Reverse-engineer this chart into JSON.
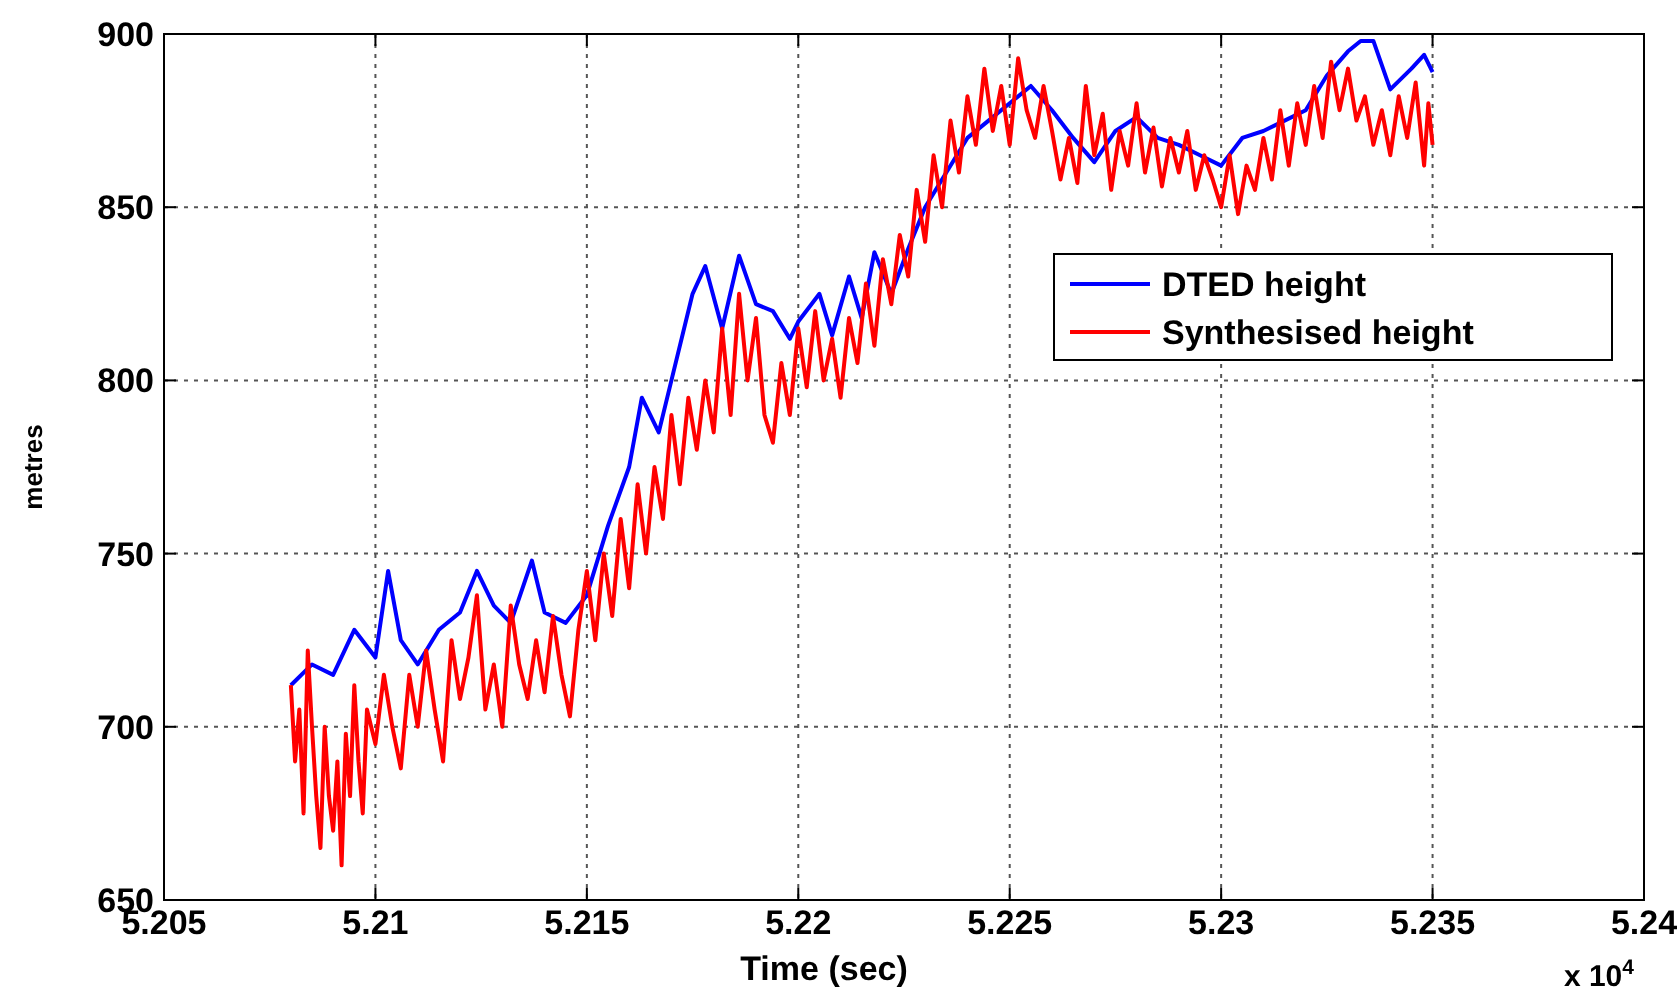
{
  "chart_data": {
    "type": "line",
    "xlabel": "Time (sec)",
    "ylabel": "metres",
    "annotations": [
      "x 10$^{4}$"
    ],
    "xlim": [
      5.205,
      5.24
    ],
    "xticks": [
      5.205,
      5.21,
      5.215,
      5.22,
      5.225,
      5.23,
      5.235,
      5.24
    ],
    "ylim": [
      650,
      900
    ],
    "yticks": [
      650,
      700,
      750,
      800,
      850,
      900
    ],
    "grid": true,
    "legend": "right",
    "line_style": "solid",
    "series": [
      {
        "name": "DTED height",
        "color": "#0000ff",
        "x": [
          5.208,
          5.2085,
          5.209,
          5.2095,
          5.21,
          5.2103,
          5.2106,
          5.211,
          5.2115,
          5.212,
          5.2124,
          5.2128,
          5.2132,
          5.2137,
          5.214,
          5.2145,
          5.215,
          5.2155,
          5.216,
          5.2163,
          5.2167,
          5.217,
          5.2175,
          5.2178,
          5.2182,
          5.2186,
          5.219,
          5.2194,
          5.2198,
          5.22,
          5.2205,
          5.2208,
          5.2212,
          5.2215,
          5.2218,
          5.2222,
          5.2226,
          5.223,
          5.2235,
          5.224,
          5.2245,
          5.225,
          5.2255,
          5.226,
          5.2265,
          5.227,
          5.2275,
          5.228,
          5.2285,
          5.229,
          5.2295,
          5.23,
          5.2305,
          5.231,
          5.2315,
          5.232,
          5.2325,
          5.233,
          5.2333,
          5.2336,
          5.234,
          5.2345,
          5.2348,
          5.235
        ],
        "values": [
          712,
          718,
          715,
          728,
          720,
          745,
          725,
          718,
          728,
          733,
          745,
          735,
          730,
          748,
          733,
          730,
          738,
          758,
          775,
          795,
          785,
          800,
          825,
          833,
          815,
          836,
          822,
          820,
          812,
          817,
          825,
          813,
          830,
          818,
          837,
          825,
          838,
          850,
          860,
          870,
          875,
          880,
          885,
          878,
          870,
          863,
          872,
          876,
          870,
          868,
          865,
          862,
          870,
          872,
          875,
          878,
          888,
          895,
          898,
          898,
          884,
          890,
          894,
          889
        ]
      },
      {
        "name": "Synthesised height",
        "color": "#ff0000",
        "x": [
          5.208,
          5.2081,
          5.2082,
          5.2083,
          5.2084,
          5.2085,
          5.2086,
          5.2087,
          5.2088,
          5.2089,
          5.209,
          5.2091,
          5.2092,
          5.2093,
          5.2094,
          5.2095,
          5.2096,
          5.2097,
          5.2098,
          5.21,
          5.2102,
          5.2104,
          5.2106,
          5.2108,
          5.211,
          5.2112,
          5.2114,
          5.2116,
          5.2118,
          5.212,
          5.2122,
          5.2124,
          5.2126,
          5.2128,
          5.213,
          5.2132,
          5.2134,
          5.2136,
          5.2138,
          5.214,
          5.2142,
          5.2144,
          5.2146,
          5.2148,
          5.215,
          5.2152,
          5.2154,
          5.2156,
          5.2158,
          5.216,
          5.2162,
          5.2164,
          5.2166,
          5.2168,
          5.217,
          5.2172,
          5.2174,
          5.2176,
          5.2178,
          5.218,
          5.2182,
          5.2184,
          5.2186,
          5.2188,
          5.219,
          5.2192,
          5.2194,
          5.2196,
          5.2198,
          5.22,
          5.2202,
          5.2204,
          5.2206,
          5.2208,
          5.221,
          5.2212,
          5.2214,
          5.2216,
          5.2218,
          5.222,
          5.2222,
          5.2224,
          5.2226,
          5.2228,
          5.223,
          5.2232,
          5.2234,
          5.2236,
          5.2238,
          5.224,
          5.2242,
          5.2244,
          5.2246,
          5.2248,
          5.225,
          5.2252,
          5.2254,
          5.2256,
          5.2258,
          5.226,
          5.2262,
          5.2264,
          5.2266,
          5.2268,
          5.227,
          5.2272,
          5.2274,
          5.2276,
          5.2278,
          5.228,
          5.2282,
          5.2284,
          5.2286,
          5.2288,
          5.229,
          5.2292,
          5.2294,
          5.2296,
          5.2298,
          5.23,
          5.2302,
          5.2304,
          5.2306,
          5.2308,
          5.231,
          5.2312,
          5.2314,
          5.2316,
          5.2318,
          5.232,
          5.2322,
          5.2324,
          5.2326,
          5.2328,
          5.233,
          5.2332,
          5.2334,
          5.2336,
          5.2338,
          5.234,
          5.2342,
          5.2344,
          5.2346,
          5.2348,
          5.2349,
          5.235
        ],
        "values": [
          712,
          690,
          705,
          675,
          722,
          700,
          680,
          665,
          700,
          680,
          670,
          690,
          660,
          698,
          680,
          712,
          690,
          675,
          705,
          695,
          715,
          700,
          688,
          715,
          700,
          722,
          705,
          690,
          725,
          708,
          720,
          738,
          705,
          718,
          700,
          735,
          718,
          708,
          725,
          710,
          732,
          715,
          703,
          728,
          745,
          725,
          750,
          732,
          760,
          740,
          770,
          750,
          775,
          760,
          790,
          770,
          795,
          780,
          800,
          785,
          815,
          790,
          825,
          800,
          818,
          790,
          782,
          805,
          790,
          815,
          798,
          820,
          800,
          812,
          795,
          818,
          805,
          828,
          810,
          835,
          822,
          842,
          830,
          855,
          840,
          865,
          850,
          875,
          860,
          882,
          868,
          890,
          872,
          885,
          868,
          893,
          878,
          870,
          885,
          872,
          858,
          870,
          857,
          885,
          865,
          877,
          855,
          872,
          862,
          880,
          860,
          873,
          856,
          870,
          860,
          872,
          855,
          865,
          858,
          850,
          865,
          848,
          862,
          855,
          870,
          858,
          878,
          862,
          880,
          868,
          885,
          870,
          892,
          878,
          890,
          875,
          882,
          868,
          878,
          865,
          882,
          870,
          886,
          862,
          880,
          868
        ]
      }
    ]
  }
}
